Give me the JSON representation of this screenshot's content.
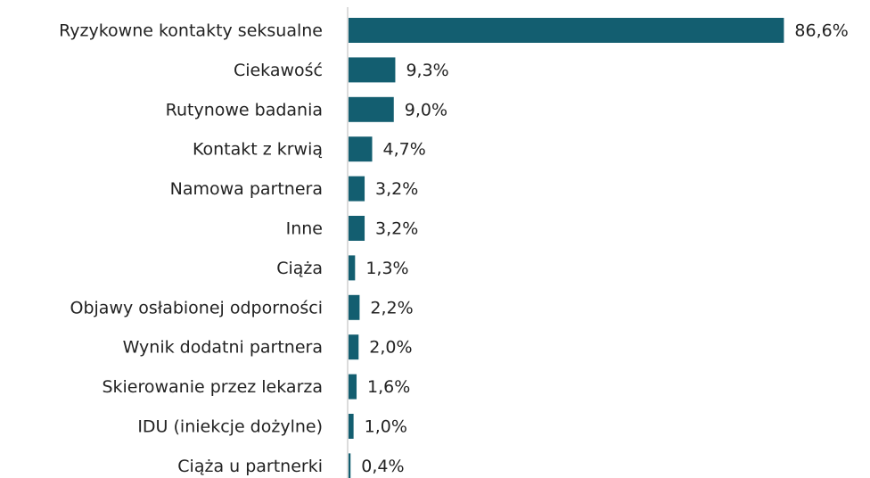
{
  "chart_data": {
    "type": "bar",
    "orientation": "horizontal",
    "categories": [
      "Ryzykowne kontakty seksualne",
      "Ciekawość",
      "Rutynowe badania",
      "Kontakt z krwią",
      "Namowa partnera",
      "Inne",
      "Ciąża",
      "Objawy osłabionej odporności",
      "Wynik dodatni partnera",
      "Skierowanie przez lekarza",
      "IDU (iniekcje dożylne)",
      "Ciąża u partnerki"
    ],
    "values": [
      86.6,
      9.3,
      9.0,
      4.7,
      3.2,
      3.2,
      1.3,
      2.2,
      2.0,
      1.6,
      1.0,
      0.4
    ],
    "value_labels": [
      "86,6%",
      "9,3%",
      "9,0%",
      "4,7%",
      "3,2%",
      "3,2%",
      "1,3%",
      "2,2%",
      "2,0%",
      "1,6%",
      "1,0%",
      "0,4%"
    ],
    "color": "#135e70"
  }
}
